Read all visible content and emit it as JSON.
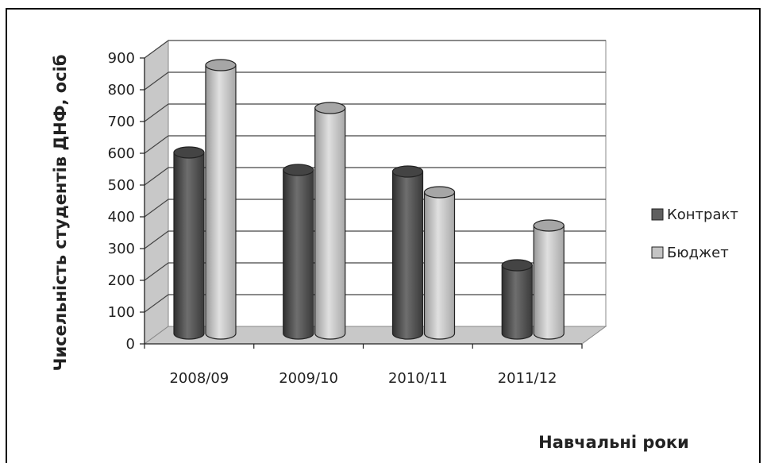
{
  "chart_data": {
    "type": "bar",
    "categories": [
      "2008/09",
      "2009/10",
      "2010/11",
      "2011/12"
    ],
    "series": [
      {
        "name": "Контракт",
        "values": [
          575,
          520,
          515,
          220
        ],
        "color": "#5f5f5f"
      },
      {
        "name": "Бюджет",
        "values": [
          850,
          715,
          450,
          345
        ],
        "color": "#c4c4c4"
      }
    ],
    "y_ticks": [
      0,
      100,
      200,
      300,
      400,
      500,
      600,
      700,
      800,
      900
    ],
    "ylim": [
      0,
      900
    ],
    "xlabel": "Навчальні роки",
    "ylabel": "Чисельність студентів ДНФ, осіб",
    "legend_position": "right",
    "grid": true
  }
}
